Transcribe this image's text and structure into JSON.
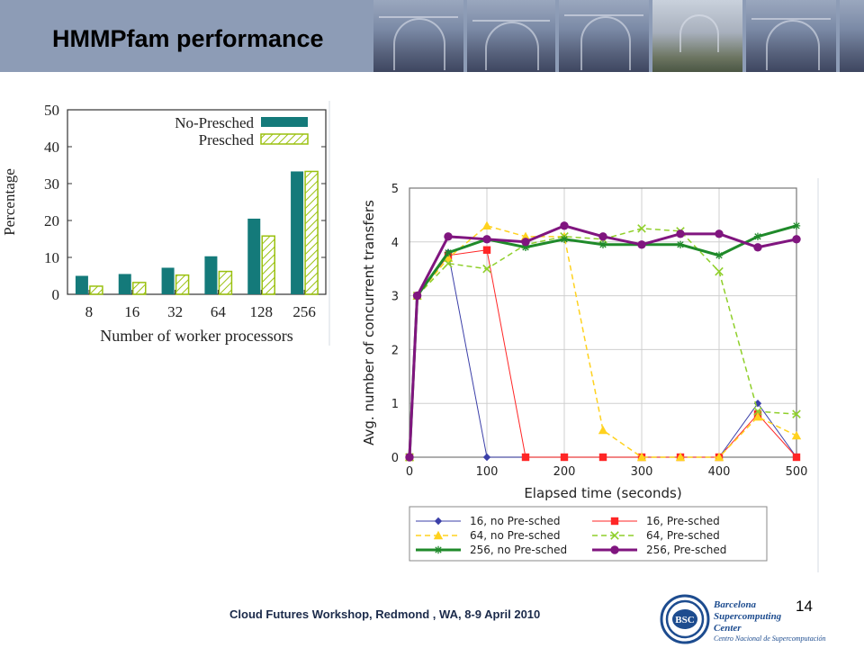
{
  "slide": {
    "title": "HMMPfam performance",
    "footer": "Cloud Futures Workshop, Redmond , WA, 8-9 April 2010",
    "page_number": "14",
    "logo": {
      "acronym": "BSC",
      "line1": "Barcelona",
      "line2": "Supercomputing",
      "line3": "Center",
      "line4": "Centro Nacional de Supercomputación"
    }
  },
  "colors": {
    "header": "#8d9cb6",
    "teal": "#147a7a",
    "hatch": "#9ac10f",
    "logo_blue": "#1d4c8f"
  },
  "chart_data": [
    {
      "type": "bar",
      "xlabel": "Number of worker processors",
      "ylabel": "Percentage",
      "ylim": [
        0,
        50
      ],
      "yticks": [
        "0",
        "10",
        "20",
        "30",
        "40",
        "50"
      ],
      "categories": [
        "8",
        "16",
        "32",
        "64",
        "128",
        "256"
      ],
      "legend_position": "top-right",
      "series": [
        {
          "name": "No-Presched",
          "color": "#147a7a",
          "values": [
            5,
            5.5,
            7.2,
            10.3,
            20.5,
            33.3
          ]
        },
        {
          "name": "Presched",
          "color": "#9ac10f",
          "hatched": true,
          "values": [
            2.2,
            3.2,
            5.2,
            6.2,
            15.8,
            33.3
          ]
        }
      ]
    },
    {
      "type": "line",
      "xlabel": "Elapsed time (seconds)",
      "ylabel": "Avg. number of concurrent transfers",
      "xlim": [
        0,
        500
      ],
      "ylim": [
        0,
        5
      ],
      "xticks": [
        "0",
        "100",
        "200",
        "300",
        "400",
        "500"
      ],
      "yticks": [
        "0",
        "1",
        "2",
        "3",
        "4",
        "5"
      ],
      "grid": true,
      "legend_position": "bottom",
      "x": [
        0,
        10,
        50,
        100,
        150,
        200,
        250,
        300,
        350,
        400,
        450,
        500
      ],
      "series": [
        {
          "name": "16, no Pre-sched",
          "color": "#3b3fa8",
          "dash": "solid",
          "marker": "diamond",
          "width": 1,
          "values": [
            0,
            3,
            3.8,
            0,
            0,
            0,
            0,
            0,
            0,
            0,
            1,
            0
          ]
        },
        {
          "name": "16, Pre-sched",
          "color": "#ff2626",
          "dash": "solid",
          "marker": "square",
          "width": 1,
          "values": [
            0,
            3,
            3.75,
            3.85,
            0,
            0,
            0,
            0,
            0,
            0,
            0.8,
            0
          ]
        },
        {
          "name": "64, no Pre-sched",
          "color": "#ffd21f",
          "dash": "dashed",
          "marker": "triangle",
          "width": 1.5,
          "values": [
            0,
            3,
            3.7,
            4.3,
            4.1,
            4.1,
            0.5,
            0,
            0,
            0,
            0.75,
            0.4
          ]
        },
        {
          "name": "64, Pre-sched",
          "color": "#8fcf2a",
          "dash": "dashed",
          "marker": "x",
          "width": 1.5,
          "values": [
            0,
            3,
            3.6,
            3.5,
            3.95,
            4.1,
            4.05,
            4.25,
            4.2,
            3.45,
            0.85,
            0.8
          ]
        },
        {
          "name": "256, no Pre-sched",
          "color": "#1f8a2a",
          "dash": "solid",
          "marker": "star",
          "width": 3,
          "values": [
            0,
            3,
            3.8,
            4.05,
            3.9,
            4.05,
            3.95,
            3.95,
            3.95,
            3.75,
            4.1,
            4.3
          ]
        },
        {
          "name": "256, Pre-sched",
          "color": "#80157f",
          "dash": "solid",
          "marker": "circle",
          "width": 3,
          "values": [
            0,
            3,
            4.1,
            4.05,
            4.0,
            4.3,
            4.1,
            3.95,
            4.15,
            4.15,
            3.9,
            4.05
          ]
        }
      ]
    }
  ]
}
